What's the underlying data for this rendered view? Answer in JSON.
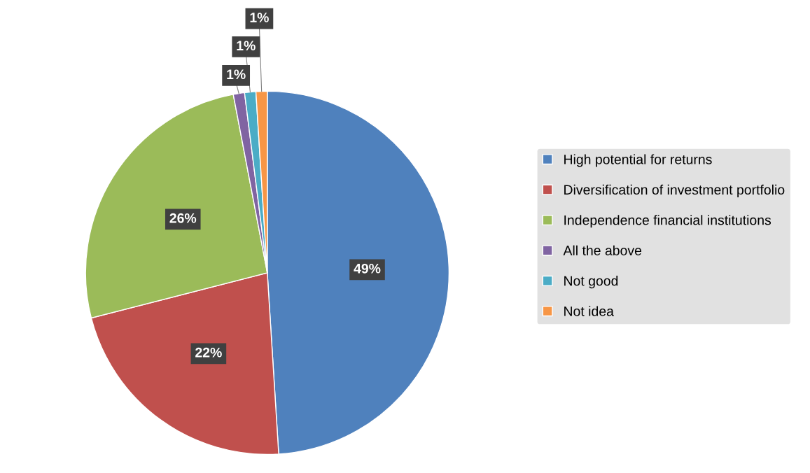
{
  "chart_data": {
    "type": "pie",
    "categories": [
      "High potential for returns",
      "Diversification of investment portfolio",
      "Independence financial institutions",
      "All the above",
      "Not good",
      "Not idea"
    ],
    "values": [
      49,
      22,
      26,
      1,
      1,
      1
    ],
    "colors": [
      "#4f81bd",
      "#c0504d",
      "#9bbb59",
      "#8064a2",
      "#4bacc6",
      "#f79646"
    ],
    "value_labels": [
      "49%",
      "22%",
      "26%",
      "1%",
      "1%",
      "1%"
    ],
    "legend": "right"
  }
}
